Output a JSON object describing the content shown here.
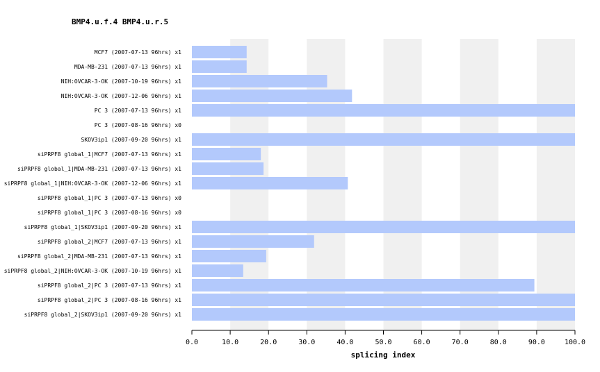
{
  "chart_title": "BMP4.u.f.4  BMP4.u.r.5",
  "colors": {
    "bar": "#b3c9fc",
    "band": "#f0f0f0",
    "axis": "#000000"
  },
  "chart_data": {
    "type": "bar",
    "orientation": "horizontal",
    "title": "BMP4.u.f.4  BMP4.u.r.5",
    "xlabel": "splicing index",
    "ylabel": "",
    "xlim": [
      0,
      100
    ],
    "ticks": [
      "0.0",
      "10.0",
      "20.0",
      "30.0",
      "40.0",
      "50.0",
      "60.0",
      "70.0",
      "80.0",
      "90.0",
      "100.0"
    ],
    "grid": "alternating vertical bands",
    "categories": [
      "MCF7 (2007-07-13 96hrs) x1",
      "MDA-MB-231 (2007-07-13 96hrs) x1",
      "NIH:OVCAR-3-OK (2007-10-19 96hrs) x1",
      "NIH:OVCAR-3-OK (2007-12-06 96hrs) x1",
      "PC 3 (2007-07-13 96hrs) x1",
      "PC 3 (2007-08-16 96hrs) x0",
      "SKOV3ip1 (2007-09-20 96hrs) x1",
      "siPRPF8 global_1|MCF7 (2007-07-13 96hrs) x1",
      "siPRPF8 global_1|MDA-MB-231 (2007-07-13 96hrs) x1",
      "siPRPF8 global_1|NIH:OVCAR-3-OK (2007-12-06 96hrs) x1",
      "siPRPF8 global_1|PC 3 (2007-07-13 96hrs) x0",
      "siPRPF8 global_1|PC 3 (2007-08-16 96hrs) x0",
      "siPRPF8 global_1|SKOV3ip1 (2007-09-20 96hrs) x1",
      "siPRPF8 global_2|MCF7 (2007-07-13 96hrs) x1",
      "siPRPF8 global_2|MDA-MB-231 (2007-07-13 96hrs) x1",
      "siPRPF8 global_2|NIH:OVCAR-3-OK (2007-10-19 96hrs) x1",
      "siPRPF8 global_2|PC 3 (2007-07-13 96hrs) x1",
      "siPRPF8 global_2|PC 3 (2007-08-16 96hrs) x1",
      "siPRPF8 global_2|SKOV3ip1 (2007-09-20 96hrs) x1"
    ],
    "values": [
      14.3,
      14.3,
      35.3,
      41.8,
      100,
      0,
      100,
      18.0,
      18.7,
      40.7,
      0,
      0,
      100,
      31.9,
      19.4,
      13.4,
      89.4,
      100,
      100
    ]
  }
}
